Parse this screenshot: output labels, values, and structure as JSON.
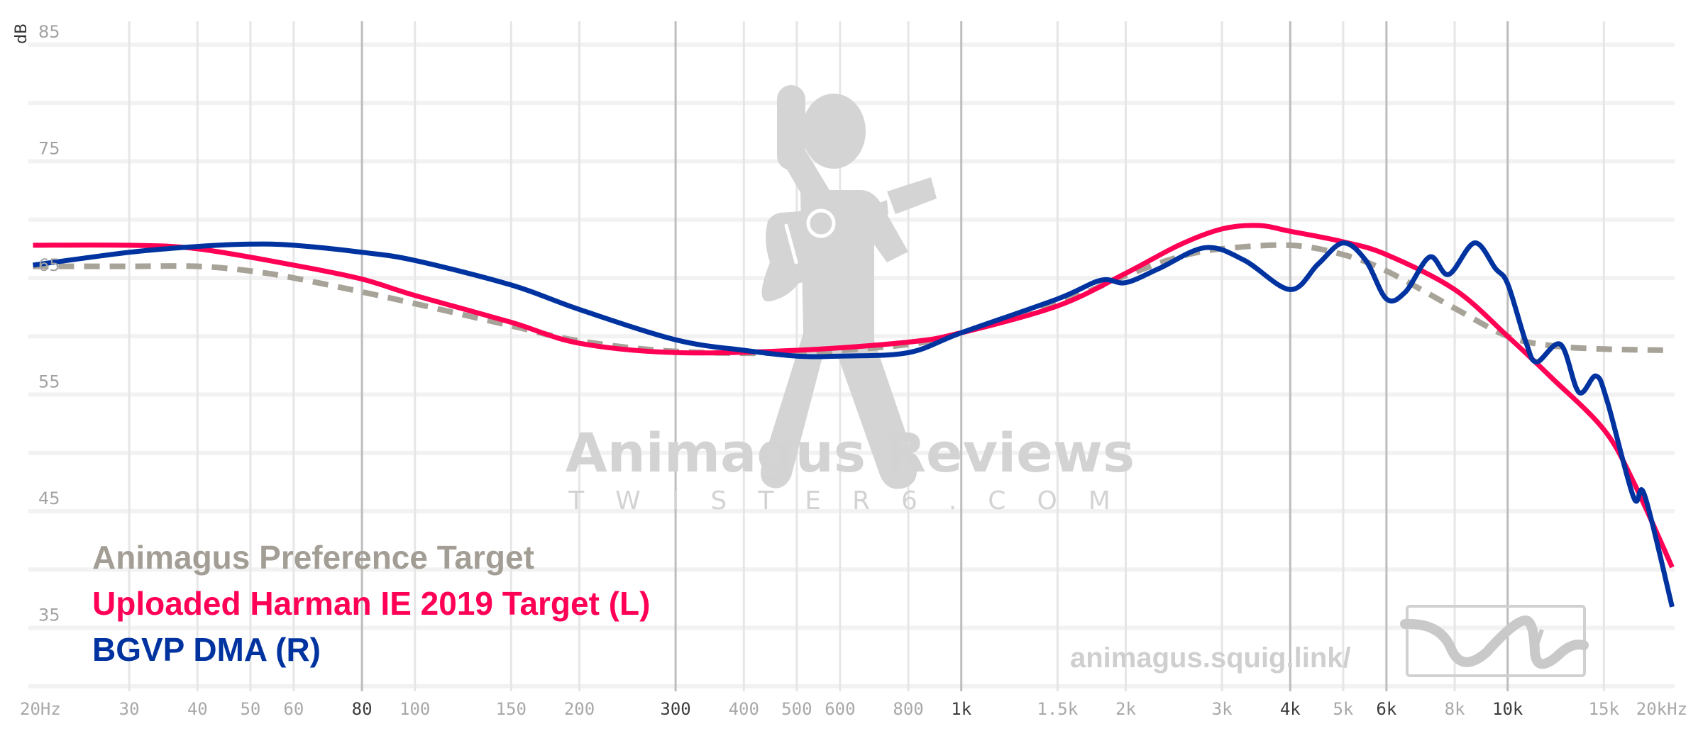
{
  "chart_data": {
    "type": "line",
    "title": "",
    "xlabel": "",
    "ylabel": "dB",
    "xscale": "log",
    "xlim": [
      20,
      20000
    ],
    "ylim": [
      30,
      85
    ],
    "grid": true,
    "legend_position": "bottom-left",
    "y_ticks": [
      85,
      75,
      65,
      55,
      45,
      35
    ],
    "y_gridlines": [
      85,
      80,
      75,
      70,
      65,
      60,
      55,
      50,
      45,
      40,
      35,
      30
    ],
    "x_ticks": [
      {
        "f": 20,
        "label": "20Hz",
        "major": false
      },
      {
        "f": 30,
        "label": "30",
        "major": false
      },
      {
        "f": 40,
        "label": "40",
        "major": false
      },
      {
        "f": 50,
        "label": "50",
        "major": false
      },
      {
        "f": 60,
        "label": "60",
        "major": false
      },
      {
        "f": 80,
        "label": "80",
        "major": true
      },
      {
        "f": 100,
        "label": "100",
        "major": false
      },
      {
        "f": 150,
        "label": "150",
        "major": false
      },
      {
        "f": 200,
        "label": "200",
        "major": false
      },
      {
        "f": 300,
        "label": "300",
        "major": true
      },
      {
        "f": 400,
        "label": "400",
        "major": false
      },
      {
        "f": 500,
        "label": "500",
        "major": false
      },
      {
        "f": 600,
        "label": "600",
        "major": false
      },
      {
        "f": 800,
        "label": "800",
        "major": false
      },
      {
        "f": 1000,
        "label": "1k",
        "major": true
      },
      {
        "f": 1500,
        "label": "1.5k",
        "major": false
      },
      {
        "f": 2000,
        "label": "2k",
        "major": false
      },
      {
        "f": 3000,
        "label": "3k",
        "major": false
      },
      {
        "f": 4000,
        "label": "4k",
        "major": true
      },
      {
        "f": 5000,
        "label": "5k",
        "major": false
      },
      {
        "f": 6000,
        "label": "6k",
        "major": true
      },
      {
        "f": 8000,
        "label": "8k",
        "major": false
      },
      {
        "f": 10000,
        "label": "10k",
        "major": true
      },
      {
        "f": 15000,
        "label": "15k",
        "major": false
      },
      {
        "f": 20000,
        "label": "20kHz",
        "major": false
      }
    ],
    "series": [
      {
        "name": "Animagus Preference Target",
        "color": "#a8a398",
        "dashed": true,
        "points": [
          [
            20,
            66.0
          ],
          [
            30,
            66.0
          ],
          [
            40,
            66.0
          ],
          [
            50,
            65.6
          ],
          [
            60,
            65.0
          ],
          [
            80,
            63.8
          ],
          [
            100,
            62.8
          ],
          [
            150,
            60.9
          ],
          [
            200,
            59.6
          ],
          [
            300,
            58.7
          ],
          [
            500,
            58.6
          ],
          [
            800,
            59.3
          ],
          [
            1000,
            60.3
          ],
          [
            1500,
            62.8
          ],
          [
            2000,
            65.2
          ],
          [
            2500,
            66.8
          ],
          [
            3000,
            67.5
          ],
          [
            4000,
            67.8
          ],
          [
            5000,
            67.0
          ],
          [
            6000,
            65.6
          ],
          [
            8000,
            62.4
          ],
          [
            10000,
            60.0
          ],
          [
            12000,
            59.2
          ],
          [
            15000,
            58.9
          ],
          [
            20000,
            58.8
          ]
        ]
      },
      {
        "name": "Uploaded Harman IE 2019 Target (L)",
        "color": "#ff0055",
        "dashed": false,
        "points": [
          [
            20,
            67.8
          ],
          [
            30,
            67.8
          ],
          [
            40,
            67.5
          ],
          [
            60,
            66.1
          ],
          [
            80,
            64.9
          ],
          [
            100,
            63.5
          ],
          [
            150,
            61.2
          ],
          [
            200,
            59.4
          ],
          [
            300,
            58.6
          ],
          [
            500,
            58.8
          ],
          [
            800,
            59.5
          ],
          [
            1000,
            60.3
          ],
          [
            1500,
            62.6
          ],
          [
            2000,
            65.4
          ],
          [
            2500,
            67.8
          ],
          [
            3000,
            69.2
          ],
          [
            3500,
            69.5
          ],
          [
            4000,
            69.0
          ],
          [
            5000,
            68.1
          ],
          [
            6000,
            67.0
          ],
          [
            8000,
            64.0
          ],
          [
            10000,
            60.0
          ],
          [
            12000,
            56.5
          ],
          [
            15000,
            52.0
          ],
          [
            17000,
            47.5
          ],
          [
            20000,
            40.2
          ]
        ]
      },
      {
        "name": "BGVP DMA (R)",
        "color": "#0033a0",
        "dashed": false,
        "points": [
          [
            20,
            66.1
          ],
          [
            30,
            67.2
          ],
          [
            40,
            67.7
          ],
          [
            50,
            67.9
          ],
          [
            60,
            67.8
          ],
          [
            80,
            67.2
          ],
          [
            100,
            66.5
          ],
          [
            150,
            64.4
          ],
          [
            200,
            62.3
          ],
          [
            300,
            59.7
          ],
          [
            400,
            58.8
          ],
          [
            500,
            58.3
          ],
          [
            600,
            58.3
          ],
          [
            800,
            58.6
          ],
          [
            1000,
            60.3
          ],
          [
            1500,
            63.2
          ],
          [
            1800,
            64.8
          ],
          [
            2000,
            64.6
          ],
          [
            2300,
            65.8
          ],
          [
            2800,
            67.6
          ],
          [
            3300,
            66.5
          ],
          [
            4000,
            64.0
          ],
          [
            4500,
            66.2
          ],
          [
            5000,
            68.0
          ],
          [
            5500,
            66.5
          ],
          [
            6000,
            63.2
          ],
          [
            6500,
            63.8
          ],
          [
            7200,
            66.8
          ],
          [
            7800,
            65.3
          ],
          [
            8700,
            68.0
          ],
          [
            9500,
            65.8
          ],
          [
            10000,
            64.5
          ],
          [
            10800,
            59.5
          ],
          [
            11300,
            57.8
          ],
          [
            12500,
            59.3
          ],
          [
            13500,
            55.2
          ],
          [
            14500,
            56.6
          ],
          [
            15200,
            54.5
          ],
          [
            17000,
            46.2
          ],
          [
            17800,
            46.4
          ],
          [
            20000,
            36.8
          ]
        ]
      }
    ]
  },
  "legend": {
    "items": [
      {
        "label": "Animagus Preference Target",
        "color": "#a39e95"
      },
      {
        "label": "Uploaded Harman IE 2019 Target (L)",
        "color": "#ff0055"
      },
      {
        "label": "BGVP DMA (R)",
        "color": "#0033a0"
      }
    ]
  },
  "watermark": {
    "title": "Animagus Reviews",
    "subtitle": "TWISTER6.COM",
    "url": "animagus.squig.link/",
    "logo_icon": "guitarist-icon",
    "squig_icon": "squiggle-logo-icon"
  }
}
